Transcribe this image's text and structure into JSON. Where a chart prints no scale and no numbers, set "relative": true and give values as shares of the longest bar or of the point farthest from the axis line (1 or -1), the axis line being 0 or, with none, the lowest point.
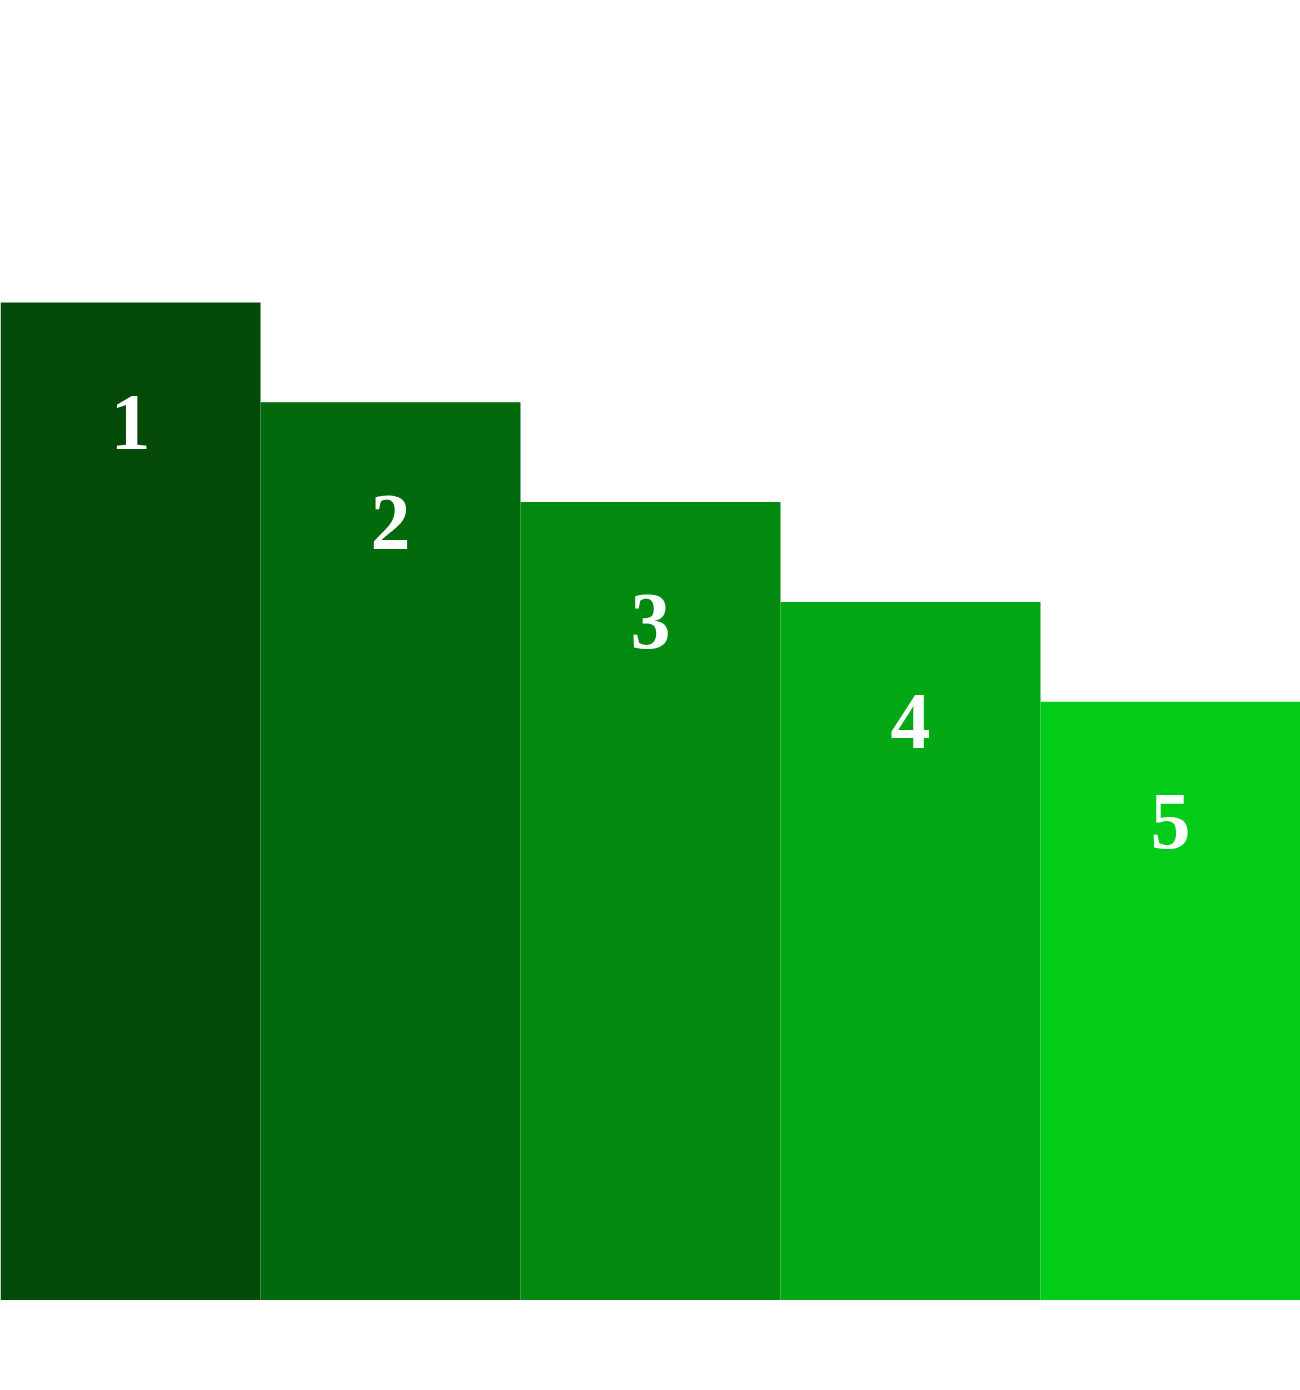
{
  "chart_data": {
    "type": "bar",
    "relative": true,
    "categories": [
      "1",
      "2",
      "3",
      "4",
      "5"
    ],
    "values": [
      1,
      0.9,
      0.8,
      0.7,
      0.6
    ],
    "colors": [
      "#034a08",
      "#02690c",
      "#028a10",
      "#03a814",
      "#02cc18"
    ]
  }
}
